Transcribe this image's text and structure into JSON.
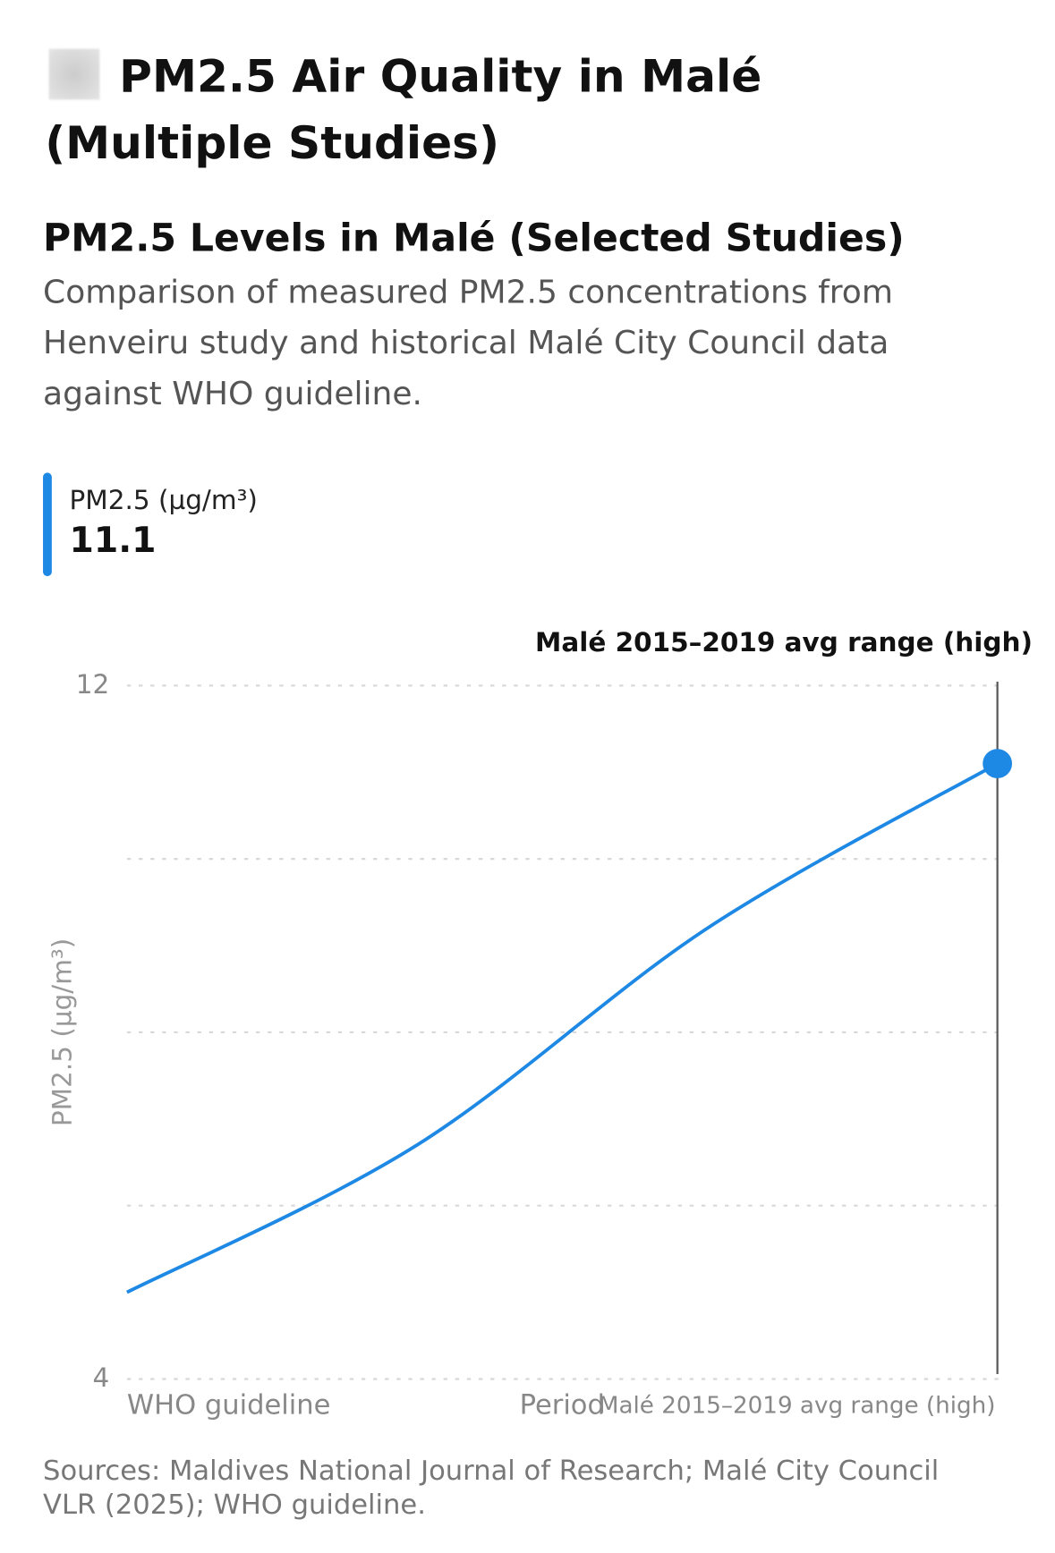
{
  "header": {
    "title": "PM2.5 Air Quality in Malé (Multiple Studies)"
  },
  "chart_data": {
    "type": "line",
    "title": "PM2.5 Levels in Malé (Selected Studies)",
    "subtitle": "Comparison of measured PM2.5 concentrations from Henveiru study and historical Malé City Council data against WHO guideline.",
    "x_label": "Period",
    "y_label": "PM2.5 (µg/m³)",
    "categories": [
      "WHO guideline",
      null,
      null,
      "Malé 2015–2019 avg range (high)"
    ],
    "series": [
      {
        "name": "PM2.5 (µg/m³)",
        "color": "#1e88e5",
        "values": [
          5.0,
          6.7,
          9.2,
          11.1
        ]
      }
    ],
    "ylim": [
      4,
      12
    ],
    "yticks": [
      4,
      12
    ],
    "gridlines": [
      4,
      6,
      8,
      10,
      12
    ],
    "highlighted_index": 3,
    "source": "Sources: Maldives National Journal of Research; Malé City Council VLR (2025); WHO guideline."
  }
}
